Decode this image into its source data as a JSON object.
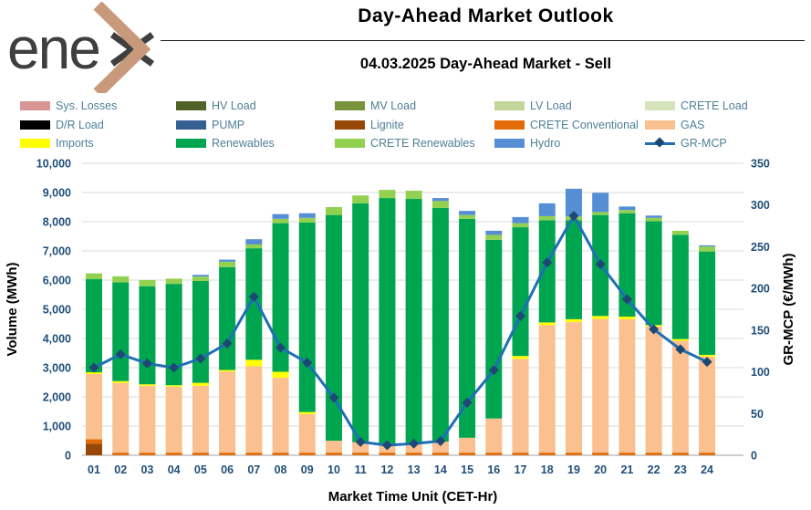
{
  "header": {
    "logo_text": "ene",
    "title": "Day-Ahead Market Outlook",
    "subtitle": "04.03.2025  Day-Ahead Market - Sell"
  },
  "colors": {
    "tick_label": "#1F4E79",
    "grid": "#D9D9D9",
    "axis_line": "#BFBFBF",
    "legend_text": "#4E7F97",
    "logo_text": "#3F3F3F",
    "logo_chevron": "#C9997B"
  },
  "legend": {
    "items": [
      {
        "label": "Sys. Losses",
        "color": "#D99694",
        "swatch": "box"
      },
      {
        "label": "HV Load",
        "color": "#4F6228",
        "swatch": "box"
      },
      {
        "label": "MV Load",
        "color": "#77933C",
        "swatch": "box"
      },
      {
        "label": "LV Load",
        "color": "#C3D69B",
        "swatch": "box"
      },
      {
        "label": "CRETE Load",
        "color": "#D6E4BC",
        "swatch": "box"
      },
      {
        "label": "D/R Load",
        "color": "#000000",
        "swatch": "box"
      },
      {
        "label": "PUMP",
        "color": "#376092",
        "swatch": "box"
      },
      {
        "label": "Lignite",
        "color": "#974806",
        "swatch": "box"
      },
      {
        "label": "CRETE Conventional",
        "color": "#E36C09",
        "swatch": "box"
      },
      {
        "label": "GAS",
        "color": "#FAC090",
        "swatch": "box"
      },
      {
        "label": "Imports",
        "color": "#FFFF00",
        "swatch": "box"
      },
      {
        "label": "Renewables",
        "color": "#00A550",
        "swatch": "box"
      },
      {
        "label": "CRETE Renewables",
        "color": "#92D050",
        "swatch": "box"
      },
      {
        "label": "Hydro",
        "color": "#558ED5",
        "swatch": "box"
      },
      {
        "label": "GR-MCP",
        "color": "#1F6FB5",
        "marker_color": "#1E4874",
        "swatch": "line"
      }
    ]
  },
  "chart_data": {
    "type": "stacked-bar+line",
    "title": "Day-Ahead Market Outlook",
    "xlabel": "Market Time Unit (CET-Hr)",
    "ylabel_left": "Volume (MWh)",
    "ylabel_right": "GR-MCP (€/MWh)",
    "categories": [
      "01",
      "02",
      "03",
      "04",
      "05",
      "06",
      "07",
      "08",
      "09",
      "10",
      "11",
      "12",
      "13",
      "14",
      "15",
      "16",
      "17",
      "18",
      "19",
      "20",
      "21",
      "22",
      "23",
      "24"
    ],
    "y_left": {
      "min": 0,
      "max": 10000,
      "step": 1000,
      "tick_labels": [
        "0",
        "1,000",
        "2,000",
        "3,000",
        "4,000",
        "5,000",
        "6,000",
        "7,000",
        "8,000",
        "9,000",
        "10,000"
      ]
    },
    "y_right": {
      "min": 0,
      "max": 350,
      "step": 50,
      "tick_labels": [
        "0",
        "50",
        "100",
        "150",
        "200",
        "250",
        "300",
        "350"
      ]
    },
    "grid": "horizontal",
    "legend_position": "top",
    "series": [
      {
        "name": "Sys. Losses",
        "color": "#D99694",
        "values": [
          0,
          0,
          0,
          0,
          0,
          0,
          0,
          0,
          0,
          0,
          0,
          0,
          0,
          0,
          0,
          0,
          0,
          0,
          0,
          0,
          0,
          0,
          0,
          0
        ]
      },
      {
        "name": "HV Load",
        "color": "#4F6228",
        "values": [
          0,
          0,
          0,
          0,
          0,
          0,
          0,
          0,
          0,
          0,
          0,
          0,
          0,
          0,
          0,
          0,
          0,
          0,
          0,
          0,
          0,
          0,
          0,
          0
        ]
      },
      {
        "name": "MV Load",
        "color": "#77933C",
        "values": [
          0,
          0,
          0,
          0,
          0,
          0,
          0,
          0,
          0,
          0,
          0,
          0,
          0,
          0,
          0,
          0,
          0,
          0,
          0,
          0,
          0,
          0,
          0,
          0
        ]
      },
      {
        "name": "LV Load",
        "color": "#C3D69B",
        "values": [
          0,
          0,
          0,
          0,
          0,
          0,
          0,
          0,
          0,
          0,
          0,
          0,
          0,
          0,
          0,
          0,
          0,
          0,
          0,
          0,
          0,
          0,
          0,
          0
        ]
      },
      {
        "name": "CRETE Load",
        "color": "#D6E4BC",
        "values": [
          0,
          0,
          0,
          0,
          0,
          0,
          0,
          0,
          0,
          0,
          0,
          0,
          0,
          0,
          0,
          0,
          0,
          0,
          0,
          0,
          0,
          0,
          0,
          0
        ]
      },
      {
        "name": "D/R Load",
        "color": "#000000",
        "values": [
          0,
          0,
          0,
          0,
          0,
          0,
          0,
          0,
          0,
          0,
          0,
          0,
          0,
          0,
          0,
          0,
          0,
          0,
          0,
          0,
          0,
          0,
          0,
          0
        ]
      },
      {
        "name": "PUMP",
        "color": "#376092",
        "values": [
          0,
          0,
          0,
          0,
          0,
          0,
          0,
          0,
          0,
          0,
          0,
          0,
          0,
          0,
          0,
          0,
          0,
          0,
          0,
          0,
          0,
          0,
          0,
          0
        ]
      },
      {
        "name": "Lignite",
        "color": "#974806",
        "values": [
          400,
          0,
          0,
          0,
          0,
          0,
          0,
          0,
          0,
          0,
          0,
          0,
          0,
          0,
          0,
          0,
          0,
          0,
          0,
          0,
          0,
          0,
          0,
          0
        ]
      },
      {
        "name": "CRETE Conventional",
        "color": "#E36C09",
        "values": [
          150,
          90,
          90,
          90,
          90,
          90,
          90,
          90,
          90,
          90,
          90,
          90,
          90,
          90,
          90,
          90,
          90,
          90,
          90,
          90,
          90,
          90,
          90,
          90
        ]
      },
      {
        "name": "GAS",
        "color": "#FAC090",
        "values": [
          2230,
          2390,
          2290,
          2260,
          2290,
          2780,
          2960,
          2570,
          1320,
          410,
          360,
          310,
          310,
          380,
          510,
          1170,
          3210,
          4370,
          4470,
          4580,
          4570,
          4320,
          3830,
          3290
        ]
      },
      {
        "name": "Imports",
        "color": "#FFFF00",
        "values": [
          60,
          60,
          50,
          50,
          100,
          50,
          220,
          200,
          70,
          0,
          0,
          0,
          0,
          0,
          0,
          0,
          100,
          90,
          100,
          100,
          90,
          50,
          60,
          60
        ]
      },
      {
        "name": "Renewables",
        "color": "#00A550",
        "values": [
          3190,
          3380,
          3360,
          3470,
          3490,
          3520,
          3820,
          5090,
          6490,
          7730,
          8180,
          8410,
          8380,
          8000,
          7500,
          6120,
          4410,
          3500,
          3390,
          3460,
          3540,
          3560,
          3570,
          3540
        ]
      },
      {
        "name": "CRETE Renewables",
        "color": "#92D050",
        "values": [
          200,
          210,
          210,
          180,
          150,
          190,
          130,
          150,
          160,
          270,
          270,
          280,
          280,
          240,
          130,
          170,
          140,
          140,
          130,
          100,
          110,
          110,
          140,
          170
        ]
      },
      {
        "name": "Hydro",
        "color": "#558ED5",
        "values": [
          0,
          0,
          0,
          0,
          60,
          70,
          180,
          160,
          160,
          0,
          0,
          0,
          0,
          100,
          140,
          140,
          210,
          440,
          950,
          660,
          120,
          80,
          0,
          40
        ]
      }
    ],
    "line_series": {
      "name": "GR-MCP",
      "axis": "right",
      "color": "#1F6FB5",
      "marker_color": "#1E4874",
      "marker": "diamond",
      "values": [
        105,
        121,
        110,
        105,
        116,
        134,
        190,
        129,
        111,
        69,
        16,
        12,
        14,
        17,
        63,
        102,
        167,
        231,
        287,
        229,
        187,
        151,
        127,
        112
      ]
    }
  }
}
